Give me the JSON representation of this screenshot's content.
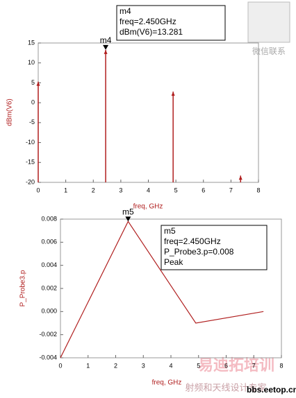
{
  "chart_data": [
    {
      "type": "stem",
      "ylabel": "dBm(V6)",
      "xlabel": "freq, GHz",
      "x": [
        0,
        2.45,
        4.9,
        7.35
      ],
      "values": [
        5.3,
        13.281,
        2.8,
        -18.3
      ],
      "color": "#b01e1e",
      "xlim": [
        0,
        8
      ],
      "xticks": [
        0,
        1,
        2,
        3,
        4,
        5,
        6,
        7,
        8
      ],
      "ylim": [
        -20,
        15
      ],
      "yticks": [
        -20,
        -15,
        -10,
        -5,
        0,
        5,
        10,
        15
      ],
      "marker": {
        "name": "m4",
        "box": [
          "m4",
          "freq=2.450GHz",
          "dBm(V6)=13.281"
        ]
      }
    },
    {
      "type": "line",
      "ylabel": "P_Probe3.p",
      "xlabel": "freq, GHz",
      "x": [
        0,
        2.45,
        4.9,
        7.35
      ],
      "values": [
        -0.004,
        0.0078,
        -0.001,
        0.0
      ],
      "color": "#b01e1e",
      "xlim": [
        0,
        8
      ],
      "xticks": [
        0,
        1,
        2,
        3,
        4,
        5,
        6,
        7,
        8
      ],
      "ylim": [
        -0.004,
        0.008
      ],
      "yticks": [
        -0.004,
        -0.002,
        {
          "value": 0,
          "label": "0.000"
        },
        0.002,
        0.004,
        0.006,
        0.008
      ],
      "marker": {
        "name": "m5",
        "box": [
          "m5",
          "freq=2.450GHz",
          "P_Probe3.p=0.008",
          "Peak"
        ]
      }
    }
  ],
  "watermark": {
    "contact": "微信联系",
    "brand": "易迪拓培训",
    "slogan": "射频和天线设计专家",
    "site": "bbs.eetop.cn"
  }
}
